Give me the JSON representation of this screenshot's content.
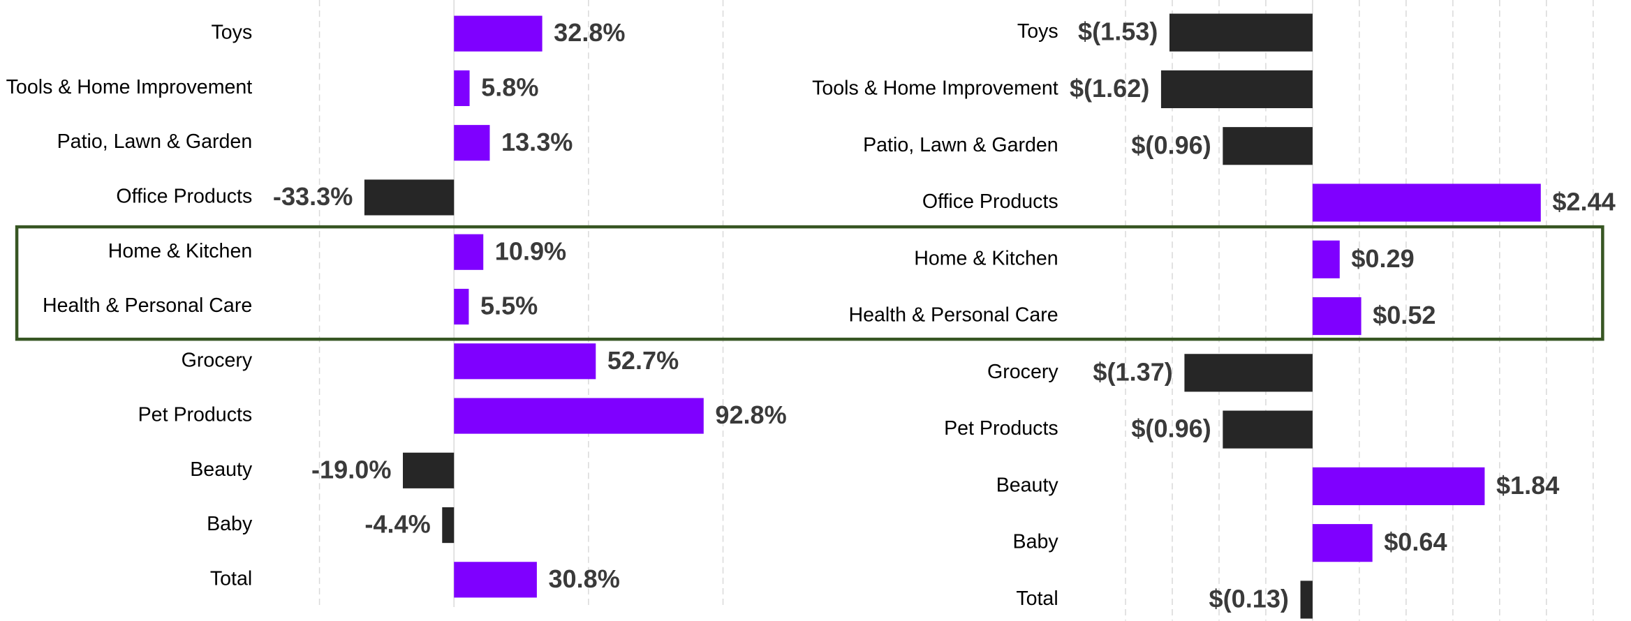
{
  "chart_data": [
    {
      "type": "bar",
      "orientation": "horizontal",
      "categories": [
        "Toys",
        "Tools & Home Improvement",
        "Patio, Lawn & Garden",
        "Office Products",
        "Home & Kitchen",
        "Health & Personal Care",
        "Grocery",
        "Pet Products",
        "Beauty",
        "Baby",
        "Total"
      ],
      "values": [
        32.8,
        5.8,
        13.3,
        -33.3,
        10.9,
        5.5,
        52.7,
        92.8,
        -19.0,
        -4.4,
        30.8
      ],
      "value_labels": [
        "32.8%",
        "5.8%",
        "13.3%",
        "-33.3%",
        "10.9%",
        "5.5%",
        "52.7%",
        "92.8%",
        "-19.0%",
        "-4.4%",
        "30.8%"
      ],
      "xlim": [
        -50,
        100
      ],
      "xticks": [
        -50,
        0,
        50,
        100
      ],
      "grid": true,
      "positive_color": "#7f00ff",
      "negative_color": "#262626"
    },
    {
      "type": "bar",
      "orientation": "horizontal",
      "categories": [
        "Toys",
        "Tools & Home Improvement",
        "Patio, Lawn & Garden",
        "Office Products",
        "Home & Kitchen",
        "Health & Personal Care",
        "Grocery",
        "Pet Products",
        "Beauty",
        "Baby",
        "Total"
      ],
      "values": [
        -1.53,
        -1.62,
        -0.96,
        2.44,
        0.29,
        0.52,
        -1.37,
        -0.96,
        1.84,
        0.64,
        -0.13
      ],
      "value_labels": [
        "$(1.53)",
        "$(1.62)",
        "$(0.96)",
        "$2.44",
        "$0.29",
        "$0.52",
        "$(1.37)",
        "$(0.96)",
        "$1.84",
        "$0.64",
        "$(0.13)"
      ],
      "xlim": [
        -2,
        3
      ],
      "xticks": [
        -2,
        -1.5,
        -1,
        -0.5,
        0,
        0.5,
        1,
        1.5,
        2,
        2.5,
        3
      ],
      "grid": true,
      "positive_color": "#7f00ff",
      "negative_color": "#262626"
    }
  ]
}
